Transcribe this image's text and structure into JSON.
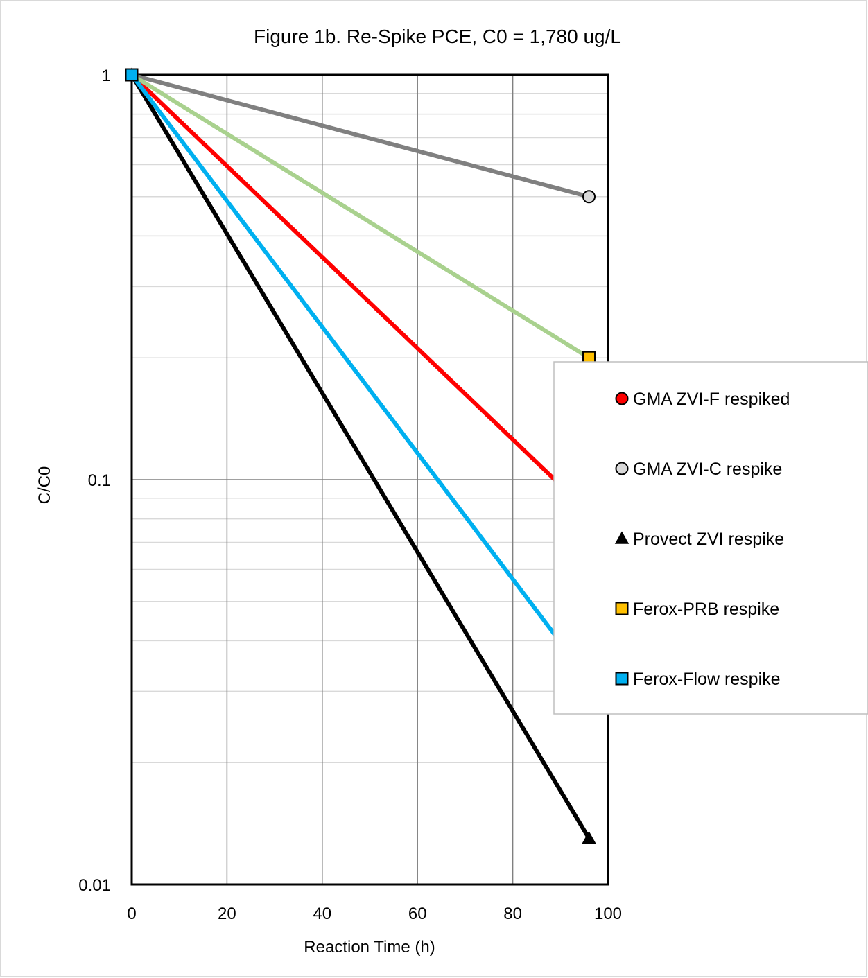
{
  "chart_data": {
    "type": "line",
    "title": "Figure 1b. Re-Spike PCE, C0 = 1,780 ug/L",
    "xlabel": "Reaction Time (h)",
    "ylabel": "C/C0",
    "xlim": [
      0,
      100
    ],
    "ylim": [
      0.01,
      1
    ],
    "yscale": "log",
    "x_ticks": [
      "0",
      "20",
      "40",
      "60",
      "80",
      "100"
    ],
    "y_ticks": [
      "0.01",
      "0.1",
      "1"
    ],
    "grid": true,
    "legend_position": "right",
    "series": [
      {
        "name": "GMA ZVI-F respiked",
        "marker": "circle",
        "line_color": "#ff0000",
        "marker_fill": "#ff0000",
        "x": [
          0,
          96
        ],
        "y": [
          1,
          0.083
        ]
      },
      {
        "name": "GMA ZVI-C respike",
        "marker": "circle",
        "line_color": "#808080",
        "marker_fill": "#d9d9d9",
        "x": [
          0,
          96
        ],
        "y": [
          1,
          0.5
        ]
      },
      {
        "name": "Provect ZVI respike",
        "marker": "triangle",
        "line_color": "#000000",
        "marker_fill": "#000000",
        "x": [
          0,
          96
        ],
        "y": [
          1,
          0.013
        ]
      },
      {
        "name": "Ferox-PRB respike",
        "marker": "square",
        "line_color": "#a9d18e",
        "marker_fill": "#ffc000",
        "x": [
          0,
          96
        ],
        "y": [
          1,
          0.2
        ]
      },
      {
        "name": "Ferox-Flow respike",
        "marker": "square",
        "line_color": "#00b0f0",
        "marker_fill": "#00b0f0",
        "x": [
          0,
          96
        ],
        "y": [
          1,
          0.032
        ]
      }
    ]
  }
}
